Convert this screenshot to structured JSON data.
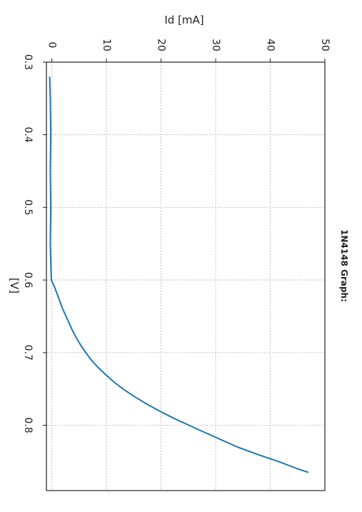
{
  "chart_data": {
    "type": "line",
    "title": "1N4148 Graph:",
    "xlabel": "[V]",
    "ylabel": "Id [mA]",
    "xlim": [
      0.3,
      0.89
    ],
    "ylim": [
      -1,
      50
    ],
    "x_ticks": [
      "0.3",
      "0.4",
      "0.5",
      "0.6",
      "0.7",
      "0.8"
    ],
    "y_ticks": [
      "0",
      "10",
      "20",
      "30",
      "40",
      "50"
    ],
    "grid": true,
    "series": [
      {
        "color": "#1f77b4",
        "x": [
          0.32,
          0.35,
          0.4,
          0.45,
          0.5,
          0.55,
          0.6,
          0.61,
          0.62,
          0.63,
          0.64,
          0.65,
          0.66,
          0.67,
          0.68,
          0.69,
          0.7,
          0.71,
          0.72,
          0.73,
          0.74,
          0.75,
          0.76,
          0.77,
          0.78,
          0.79,
          0.8,
          0.81,
          0.82,
          0.83,
          0.84,
          0.85,
          0.86,
          0.865
        ],
        "y": [
          -0.4,
          -0.3,
          -0.2,
          -0.3,
          -0.2,
          -0.3,
          -0.1,
          0.5,
          1.0,
          1.5,
          2.0,
          2.6,
          3.2,
          3.8,
          4.5,
          5.3,
          6.2,
          7.2,
          8.4,
          9.8,
          11.3,
          13.0,
          15.0,
          17.2,
          19.6,
          22.2,
          25.1,
          28.0,
          31.0,
          34.0,
          37.6,
          41.5,
          45.0,
          47.0
        ]
      }
    ]
  }
}
